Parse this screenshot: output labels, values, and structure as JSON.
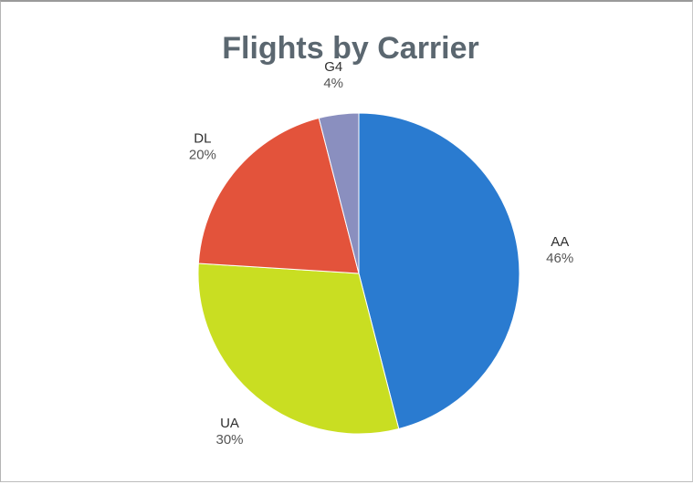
{
  "chart_data": {
    "type": "pie",
    "title": "Flights by Carrier",
    "start_angle_deg": 0,
    "direction": "clockwise",
    "legend": "none",
    "slices": [
      {
        "label": "AA",
        "value": 46,
        "value_label": "46%",
        "color": "#2a7bd0"
      },
      {
        "label": "UA",
        "value": 30,
        "value_label": "30%",
        "color": "#c9de22"
      },
      {
        "label": "DL",
        "value": 20,
        "value_label": "20%",
        "color": "#e3533b"
      },
      {
        "label": "G4",
        "value": 4,
        "value_label": "4%",
        "color": "#8a8fbf"
      }
    ]
  }
}
